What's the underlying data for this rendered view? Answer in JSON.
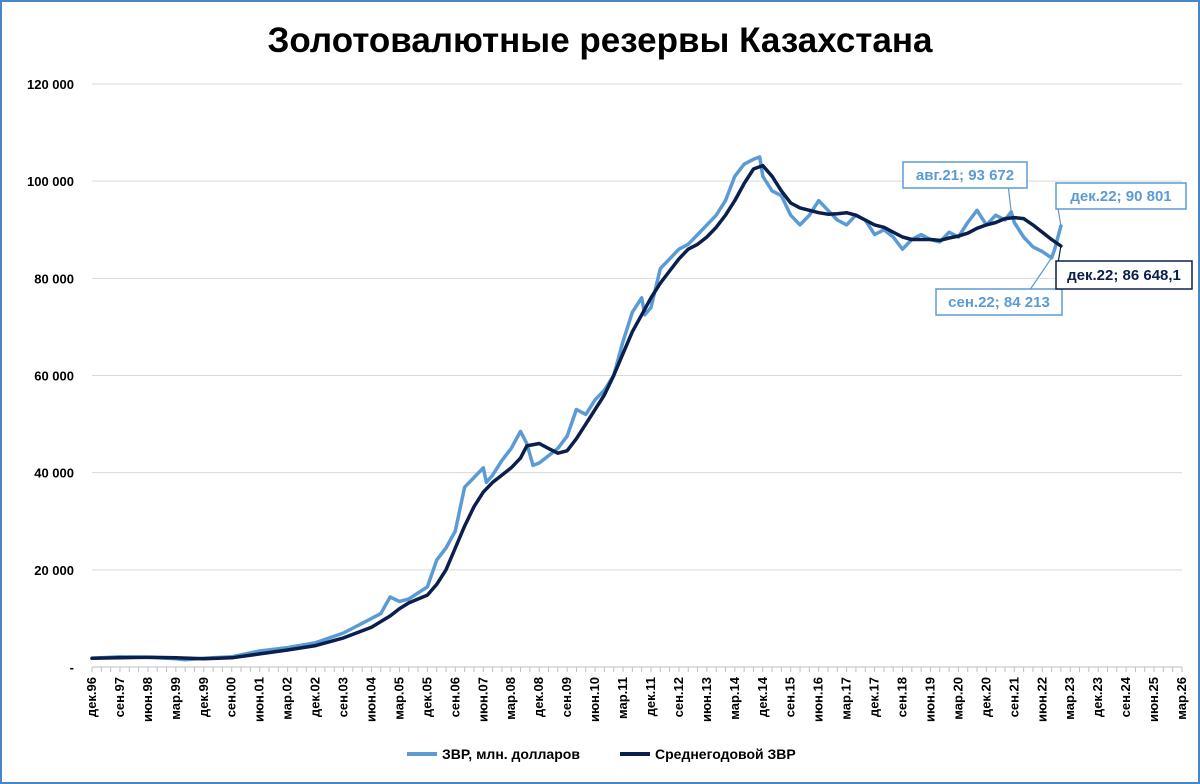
{
  "chart_data": {
    "type": "line",
    "title": "Золотовалютные резервы Казахстана",
    "xlabel": "",
    "ylabel": "",
    "x_range": [
      "1996-12",
      "2026-03"
    ],
    "ylim": [
      0,
      120000
    ],
    "y_ticks": [
      0,
      20000,
      40000,
      60000,
      80000,
      100000,
      120000
    ],
    "y_tick_labels": [
      "-",
      "20 000",
      "40 000",
      "60 000",
      "80 000",
      "100 000",
      "120 000"
    ],
    "x_tick_labels": [
      "дек.96",
      "сен.97",
      "июн.98",
      "мар.99",
      "дек.99",
      "сен.00",
      "июн.01",
      "мар.02",
      "дек.02",
      "сен.03",
      "июн.04",
      "мар.05",
      "дек.05",
      "сен.06",
      "июн.07",
      "мар.08",
      "дек.08",
      "сен.09",
      "июн.10",
      "мар.11",
      "дек.11",
      "сен.12",
      "июн.13",
      "мар.14",
      "дек.14",
      "сен.15",
      "июн.16",
      "мар.17",
      "дек.17",
      "сен.18",
      "июн.19",
      "мар.20",
      "дек.20",
      "сен.21",
      "июн.22",
      "мар.23",
      "дек.23",
      "сен.24",
      "июн.25",
      "мар.26"
    ],
    "grid": true,
    "legend_position": "bottom",
    "series": [
      {
        "name": "ЗВР, млн. долларов",
        "color": "#5b9bd5",
        "points": [
          [
            "1996-12",
            1800
          ],
          [
            "1997-09",
            2100
          ],
          [
            "1998-06",
            2000
          ],
          [
            "1999-03",
            1700
          ],
          [
            "1999-06",
            1500
          ],
          [
            "1999-12",
            1800
          ],
          [
            "2000-09",
            2100
          ],
          [
            "2001-06",
            3300
          ],
          [
            "2002-03",
            4000
          ],
          [
            "2002-12",
            5000
          ],
          [
            "2003-09",
            7000
          ],
          [
            "2004-06",
            10000
          ],
          [
            "2004-09",
            11000
          ],
          [
            "2004-12",
            14400
          ],
          [
            "2005-03",
            13500
          ],
          [
            "2005-06",
            14000
          ],
          [
            "2005-12",
            16500
          ],
          [
            "2006-03",
            22000
          ],
          [
            "2006-06",
            24500
          ],
          [
            "2006-09",
            28000
          ],
          [
            "2006-12",
            37000
          ],
          [
            "2007-03",
            39000
          ],
          [
            "2007-06",
            41000
          ],
          [
            "2007-07",
            38000
          ],
          [
            "2007-09",
            39500
          ],
          [
            "2007-12",
            42500
          ],
          [
            "2008-03",
            45000
          ],
          [
            "2008-06",
            48500
          ],
          [
            "2008-08",
            46000
          ],
          [
            "2008-10",
            41500
          ],
          [
            "2008-12",
            42000
          ],
          [
            "2009-03",
            43500
          ],
          [
            "2009-06",
            45000
          ],
          [
            "2009-09",
            47500
          ],
          [
            "2009-12",
            53000
          ],
          [
            "2010-03",
            52000
          ],
          [
            "2010-06",
            55000
          ],
          [
            "2010-09",
            57000
          ],
          [
            "2010-12",
            60000
          ],
          [
            "2011-03",
            67000
          ],
          [
            "2011-06",
            73000
          ],
          [
            "2011-09",
            76000
          ],
          [
            "2011-10",
            72500
          ],
          [
            "2011-12",
            74000
          ],
          [
            "2012-03",
            82000
          ],
          [
            "2012-06",
            84000
          ],
          [
            "2012-09",
            86000
          ],
          [
            "2012-12",
            87000
          ],
          [
            "2013-03",
            89000
          ],
          [
            "2013-06",
            91000
          ],
          [
            "2013-09",
            93000
          ],
          [
            "2013-12",
            96000
          ],
          [
            "2014-03",
            101000
          ],
          [
            "2014-06",
            103500
          ],
          [
            "2014-09",
            104500
          ],
          [
            "2014-11",
            105000
          ],
          [
            "2014-12",
            101000
          ],
          [
            "2015-03",
            98000
          ],
          [
            "2015-06",
            97000
          ],
          [
            "2015-09",
            93000
          ],
          [
            "2015-12",
            91000
          ],
          [
            "2016-03",
            93000
          ],
          [
            "2016-06",
            96000
          ],
          [
            "2016-09",
            94000
          ],
          [
            "2016-12",
            92000
          ],
          [
            "2017-03",
            91000
          ],
          [
            "2017-06",
            93000
          ],
          [
            "2017-09",
            92000
          ],
          [
            "2017-12",
            89000
          ],
          [
            "2018-03",
            90000
          ],
          [
            "2018-06",
            88500
          ],
          [
            "2018-09",
            86000
          ],
          [
            "2018-12",
            88000
          ],
          [
            "2019-03",
            89000
          ],
          [
            "2019-06",
            88000
          ],
          [
            "2019-09",
            87500
          ],
          [
            "2019-12",
            89500
          ],
          [
            "2020-03",
            88500
          ],
          [
            "2020-06",
            91500
          ],
          [
            "2020-09",
            94000
          ],
          [
            "2020-12",
            91000
          ],
          [
            "2021-03",
            93000
          ],
          [
            "2021-06",
            92000
          ],
          [
            "2021-08",
            93672
          ],
          [
            "2021-09",
            91500
          ],
          [
            "2021-12",
            88500
          ],
          [
            "2022-03",
            86500
          ],
          [
            "2022-06",
            85500
          ],
          [
            "2022-09",
            84213
          ],
          [
            "2022-10",
            86000
          ],
          [
            "2022-12",
            90801
          ]
        ]
      },
      {
        "name": "Среднегодовой ЗВР",
        "color": "#0b1f4d",
        "points": [
          [
            "1996-12",
            1800
          ],
          [
            "1997-09",
            1900
          ],
          [
            "1998-06",
            2000
          ],
          [
            "1999-03",
            1900
          ],
          [
            "1999-12",
            1700
          ],
          [
            "2000-09",
            1900
          ],
          [
            "2001-06",
            2700
          ],
          [
            "2002-03",
            3500
          ],
          [
            "2002-12",
            4400
          ],
          [
            "2003-09",
            6000
          ],
          [
            "2004-06",
            8200
          ],
          [
            "2004-12",
            10500
          ],
          [
            "2005-03",
            12000
          ],
          [
            "2005-06",
            13200
          ],
          [
            "2005-09",
            14000
          ],
          [
            "2005-12",
            14800
          ],
          [
            "2006-03",
            17000
          ],
          [
            "2006-06",
            20000
          ],
          [
            "2006-09",
            24500
          ],
          [
            "2006-12",
            29000
          ],
          [
            "2007-03",
            33000
          ],
          [
            "2007-06",
            36000
          ],
          [
            "2007-09",
            38000
          ],
          [
            "2007-12",
            39500
          ],
          [
            "2008-03",
            41000
          ],
          [
            "2008-06",
            43000
          ],
          [
            "2008-08",
            45500
          ],
          [
            "2008-12",
            46000
          ],
          [
            "2009-03",
            45000
          ],
          [
            "2009-06",
            44000
          ],
          [
            "2009-09",
            44500
          ],
          [
            "2009-12",
            47000
          ],
          [
            "2010-03",
            50000
          ],
          [
            "2010-06",
            53000
          ],
          [
            "2010-09",
            56000
          ],
          [
            "2010-12",
            60000
          ],
          [
            "2011-03",
            64500
          ],
          [
            "2011-06",
            69000
          ],
          [
            "2011-09",
            72500
          ],
          [
            "2011-12",
            76000
          ],
          [
            "2012-03",
            79000
          ],
          [
            "2012-06",
            81500
          ],
          [
            "2012-09",
            84000
          ],
          [
            "2012-12",
            86000
          ],
          [
            "2013-03",
            87000
          ],
          [
            "2013-06",
            88500
          ],
          [
            "2013-09",
            90500
          ],
          [
            "2013-12",
            93000
          ],
          [
            "2014-03",
            96000
          ],
          [
            "2014-06",
            99500
          ],
          [
            "2014-09",
            102500
          ],
          [
            "2014-12",
            103200
          ],
          [
            "2015-03",
            101000
          ],
          [
            "2015-06",
            98000
          ],
          [
            "2015-09",
            95500
          ],
          [
            "2015-12",
            94500
          ],
          [
            "2016-03",
            94000
          ],
          [
            "2016-06",
            93500
          ],
          [
            "2016-09",
            93200
          ],
          [
            "2016-12",
            93300
          ],
          [
            "2017-03",
            93500
          ],
          [
            "2017-06",
            93000
          ],
          [
            "2017-09",
            92000
          ],
          [
            "2017-12",
            91000
          ],
          [
            "2018-03",
            90500
          ],
          [
            "2018-06",
            89500
          ],
          [
            "2018-09",
            88500
          ],
          [
            "2018-12",
            88000
          ],
          [
            "2019-03",
            88000
          ],
          [
            "2019-06",
            88000
          ],
          [
            "2019-09",
            87800
          ],
          [
            "2019-12",
            88300
          ],
          [
            "2020-03",
            88700
          ],
          [
            "2020-06",
            89300
          ],
          [
            "2020-09",
            90300
          ],
          [
            "2020-12",
            91000
          ],
          [
            "2021-03",
            91500
          ],
          [
            "2021-06",
            92300
          ],
          [
            "2021-09",
            92500
          ],
          [
            "2021-12",
            92300
          ],
          [
            "2022-03",
            91000
          ],
          [
            "2022-06",
            89500
          ],
          [
            "2022-09",
            88000
          ],
          [
            "2022-12",
            86648.1
          ]
        ]
      }
    ],
    "annotations": [
      {
        "text": "авг.21; 93 672",
        "x": "2021-08",
        "y": 93672,
        "series": 0
      },
      {
        "text": "дек.22; 90 801",
        "x": "2022-12",
        "y": 90801,
        "series": 0
      },
      {
        "text": "сен.22; 84 213",
        "x": "2022-09",
        "y": 84213,
        "series": 0
      },
      {
        "text": "дек.22; 86 648,1",
        "x": "2022-12",
        "y": 86648.1,
        "series": 1
      }
    ]
  }
}
